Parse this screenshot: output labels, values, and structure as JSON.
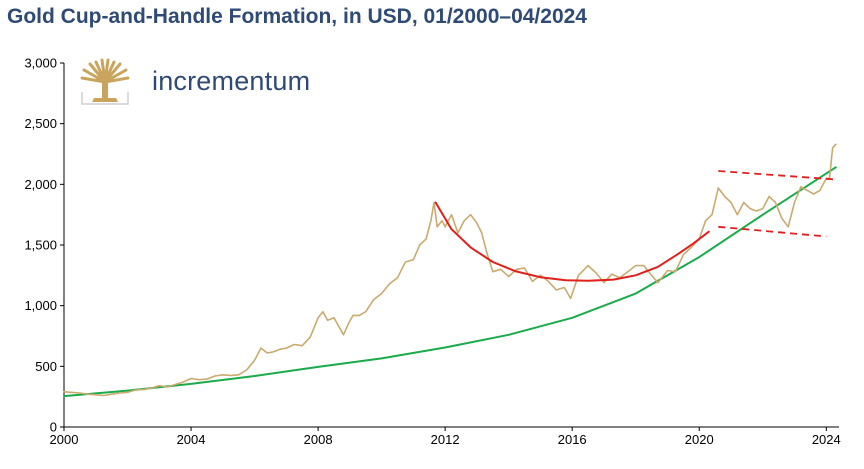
{
  "title": "Gold Cup-and-Handle Formation, in USD, 01/2000–04/2024",
  "brand": {
    "name": "incrementum",
    "logo_icon": "tree-logo-icon",
    "color": "#c9a45c"
  },
  "chart_data": {
    "type": "line",
    "title": "Gold Cup-and-Handle Formation, in USD, 01/2000–04/2024",
    "xlabel": "",
    "ylabel": "",
    "xlim": [
      2000,
      2024.4
    ],
    "ylim": [
      0,
      3000
    ],
    "x_ticks": [
      2000,
      2004,
      2008,
      2012,
      2016,
      2020,
      2024
    ],
    "y_ticks": [
      0,
      500,
      1000,
      1500,
      2000,
      2500,
      3000
    ],
    "y_tick_labels": [
      "0",
      "500",
      "1,000",
      "1,500",
      "2,000",
      "2,500",
      "3,000"
    ],
    "grid": false,
    "legend": "none",
    "series": [
      {
        "role": "gold-price",
        "color": "#c9aa6f",
        "x": [
          2000.0,
          2000.25,
          2000.5,
          2000.75,
          2001.0,
          2001.25,
          2001.5,
          2001.75,
          2002.0,
          2002.25,
          2002.5,
          2002.75,
          2003.0,
          2003.25,
          2003.5,
          2003.75,
          2004.0,
          2004.25,
          2004.5,
          2004.75,
          2005.0,
          2005.25,
          2005.5,
          2005.75,
          2006.0,
          2006.2,
          2006.4,
          2006.6,
          2006.8,
          2007.0,
          2007.25,
          2007.5,
          2007.75,
          2008.0,
          2008.15,
          2008.3,
          2008.5,
          2008.8,
          2008.95,
          2009.1,
          2009.3,
          2009.5,
          2009.75,
          2010.0,
          2010.25,
          2010.5,
          2010.75,
          2011.0,
          2011.2,
          2011.4,
          2011.55,
          2011.65,
          2011.75,
          2011.9,
          2012.0,
          2012.2,
          2012.4,
          2012.6,
          2012.8,
          2013.0,
          2013.15,
          2013.3,
          2013.5,
          2013.75,
          2014.0,
          2014.25,
          2014.5,
          2014.75,
          2015.0,
          2015.25,
          2015.5,
          2015.75,
          2015.95,
          2016.2,
          2016.5,
          2016.75,
          2017.0,
          2017.25,
          2017.5,
          2017.75,
          2018.0,
          2018.25,
          2018.5,
          2018.7,
          2019.0,
          2019.25,
          2019.5,
          2019.75,
          2020.0,
          2020.2,
          2020.4,
          2020.6,
          2020.8,
          2021.0,
          2021.2,
          2021.4,
          2021.6,
          2021.8,
          2022.0,
          2022.2,
          2022.4,
          2022.6,
          2022.8,
          2023.0,
          2023.2,
          2023.4,
          2023.6,
          2023.8,
          2024.0,
          2024.1,
          2024.2,
          2024.3
        ],
        "values": [
          290,
          285,
          280,
          270,
          265,
          260,
          270,
          280,
          285,
          305,
          310,
          320,
          340,
          330,
          350,
          370,
          400,
          390,
          395,
          420,
          430,
          425,
          430,
          470,
          550,
          650,
          610,
          620,
          640,
          650,
          680,
          670,
          740,
          900,
          950,
          880,
          900,
          760,
          850,
          920,
          920,
          950,
          1050,
          1100,
          1180,
          1230,
          1360,
          1380,
          1500,
          1550,
          1700,
          1850,
          1650,
          1700,
          1650,
          1750,
          1600,
          1700,
          1750,
          1680,
          1600,
          1450,
          1280,
          1300,
          1240,
          1300,
          1310,
          1200,
          1250,
          1200,
          1130,
          1150,
          1060,
          1250,
          1330,
          1270,
          1190,
          1260,
          1230,
          1280,
          1330,
          1330,
          1250,
          1190,
          1290,
          1280,
          1420,
          1480,
          1550,
          1700,
          1750,
          1970,
          1900,
          1850,
          1750,
          1850,
          1800,
          1780,
          1800,
          1900,
          1850,
          1720,
          1650,
          1850,
          1980,
          1950,
          1920,
          1950,
          2050,
          2050,
          2300,
          2330
        ]
      },
      {
        "role": "long-term-trend",
        "color": "#1aab4a",
        "x": [
          2000,
          2002,
          2004,
          2006,
          2008,
          2010,
          2012,
          2014,
          2016,
          2018,
          2020,
          2022,
          2024.3
        ],
        "values": [
          255,
          300,
          355,
          420,
          495,
          565,
          655,
          760,
          900,
          1100,
          1400,
          1750,
          2140
        ]
      },
      {
        "role": "cup",
        "color": "#e0201b",
        "x": [
          2011.7,
          2012.2,
          2012.8,
          2013.5,
          2014.2,
          2015.0,
          2015.8,
          2016.5,
          2017.3,
          2018.0,
          2018.7,
          2019.3,
          2019.8,
          2020.3
        ],
        "values": [
          1850,
          1630,
          1480,
          1360,
          1285,
          1235,
          1210,
          1205,
          1215,
          1250,
          1320,
          1420,
          1510,
          1610
        ]
      }
    ],
    "handle_lines": [
      {
        "x": [
          2020.6,
          2024.3
        ],
        "values": [
          2110,
          2040
        ],
        "color": "#e0201b",
        "dash": true
      },
      {
        "x": [
          2020.6,
          2024.0
        ],
        "values": [
          1650,
          1570
        ],
        "color": "#e0201b",
        "dash": true
      }
    ]
  }
}
